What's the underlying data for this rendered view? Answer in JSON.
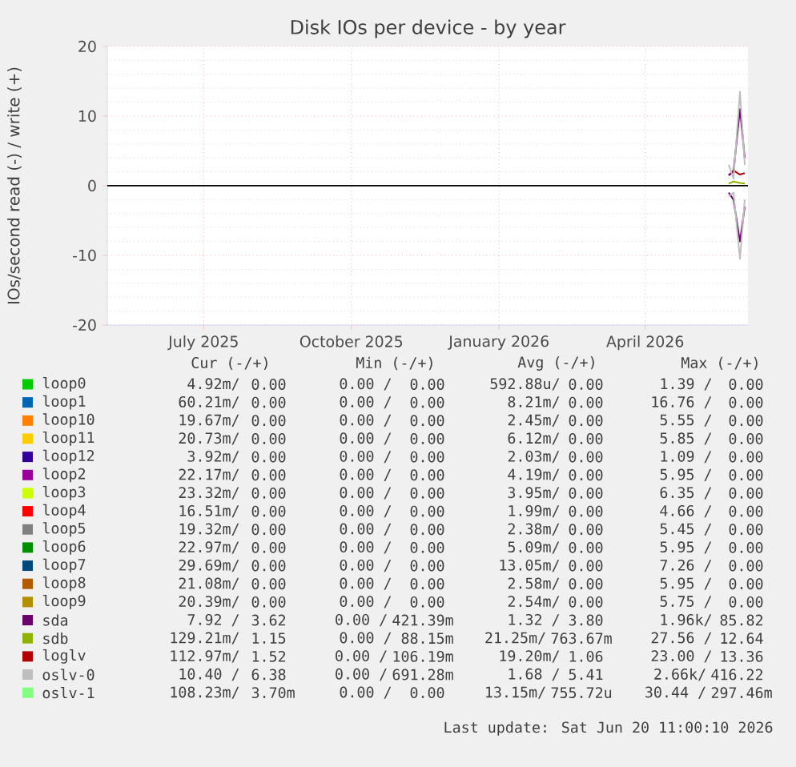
{
  "chart_data": {
    "type": "line",
    "title": "Disk IOs per device - by year",
    "ylabel": "IOs/second read (-) / write (+)",
    "xlim": [
      "2025-05-17",
      "2026-06-20"
    ],
    "xticks": [
      {
        "value": "2025-07-16",
        "label": "July 2025"
      },
      {
        "value": "2025-10-16",
        "label": "October 2025"
      },
      {
        "value": "2026-01-16",
        "label": "January 2026"
      },
      {
        "value": "2026-04-17",
        "label": "April 2026"
      }
    ],
    "ylim": [
      -20,
      20
    ],
    "yticks": [
      -20,
      -10,
      0,
      10,
      20
    ],
    "grid": true,
    "legend": "bottom",
    "ref_lines": [
      {
        "axis": "y",
        "value": 0,
        "color": "#000000"
      }
    ],
    "series": [
      {
        "name": "loop0",
        "color": "#00cc00",
        "values": [
          null,
          null,
          null,
          null
        ]
      },
      {
        "name": "loop1",
        "color": "#0066b3",
        "values": [
          null,
          null,
          null,
          null
        ]
      },
      {
        "name": "loop10",
        "color": "#ff8000",
        "values": [
          null,
          null,
          null,
          null
        ]
      },
      {
        "name": "loop11",
        "color": "#ffcc00",
        "values": [
          null,
          null,
          null,
          null
        ]
      },
      {
        "name": "loop12",
        "color": "#330099",
        "values": [
          null,
          null,
          null,
          null
        ]
      },
      {
        "name": "loop2",
        "color": "#990099",
        "values": [
          null,
          null,
          null,
          null
        ]
      },
      {
        "name": "loop3",
        "color": "#ccff00",
        "values": [
          null,
          null,
          null,
          null
        ]
      },
      {
        "name": "loop4",
        "color": "#ff0000",
        "values": [
          null,
          null,
          null,
          null
        ]
      },
      {
        "name": "loop5",
        "color": "#808080",
        "values": [
          null,
          null,
          null,
          null
        ]
      },
      {
        "name": "loop6",
        "color": "#008f00",
        "values": [
          null,
          null,
          null,
          null
        ]
      },
      {
        "name": "loop7",
        "color": "#00487d",
        "values": [
          null,
          null,
          null,
          null
        ]
      },
      {
        "name": "loop8",
        "color": "#b35a00",
        "values": [
          null,
          null,
          null,
          null
        ]
      },
      {
        "name": "loop9",
        "color": "#b38f00",
        "values": [
          null,
          null,
          null,
          null
        ]
      },
      {
        "name": "sda",
        "color": "#6b006b",
        "x": [
          "2026-06-08",
          "2026-06-11",
          "2026-06-15",
          "2026-06-18"
        ],
        "values": [
          -1,
          -2,
          -8,
          -3
        ]
      },
      {
        "name": "sdb",
        "color": "#8fb300",
        "x": [
          "2026-06-08",
          "2026-06-11",
          "2026-06-15",
          "2026-06-18"
        ],
        "values": [
          0.3,
          0.6,
          0.4,
          0.3
        ]
      },
      {
        "name": "loglv",
        "color": "#b30000",
        "x": [
          "2026-06-08",
          "2026-06-11",
          "2026-06-15",
          "2026-06-18"
        ],
        "values": [
          1.5,
          2.2,
          1.6,
          1.8
        ]
      },
      {
        "name": "oslv-0",
        "color": "#bebebe",
        "x": [
          "2026-06-08",
          "2026-06-11",
          "2026-06-15",
          "2026-06-18"
        ],
        "values": [
          -1.5,
          -1,
          -10.5,
          -2
        ]
      },
      {
        "name": "oslv-1",
        "color": "#80ff80",
        "values": [
          null,
          null,
          null,
          null
        ]
      },
      {
        "color": "#6b006b",
        "x": [
          "2026-06-08",
          "2026-06-11",
          "2026-06-15",
          "2026-06-18"
        ],
        "values": [
          1.5,
          2,
          11,
          4
        ]
      },
      {
        "color": "#bebebe",
        "x": [
          "2026-06-08",
          "2026-06-11",
          "2026-06-15",
          "2026-06-18"
        ],
        "values": [
          3,
          1,
          13.5,
          3
        ]
      }
    ],
    "annotations": [
      "Cur (-/+)",
      "Min (-/+)",
      "Avg (-/+)",
      "Max (-/+)",
      "4.92m/",
      "0.00",
      "0.00 /",
      "0.00",
      "592.88u/",
      "0.00",
      "1.39 /",
      "0.00",
      "60.21m/",
      "0.00",
      "0.00 /",
      "0.00",
      "8.21m/",
      "0.00",
      "16.76 /",
      "0.00",
      "19.67m/",
      "0.00",
      "0.00 /",
      "0.00",
      "2.45m/",
      "0.00",
      "5.55 /",
      "0.00",
      "20.73m/",
      "0.00",
      "0.00 /",
      "0.00",
      "6.12m/",
      "0.00",
      "5.85 /",
      "0.00",
      "3.92m/",
      "0.00",
      "0.00 /",
      "0.00",
      "2.03m/",
      "0.00",
      "1.09 /",
      "0.00",
      "22.17m/",
      "0.00",
      "0.00 /",
      "0.00",
      "4.19m/",
      "0.00",
      "5.95 /",
      "0.00",
      "23.32m/",
      "0.00",
      "0.00 /",
      "0.00",
      "3.95m/",
      "0.00",
      "6.35 /",
      "0.00",
      "16.51m/",
      "0.00",
      "0.00 /",
      "0.00",
      "1.99m/",
      "0.00",
      "4.66 /",
      "0.00",
      "19.32m/",
      "0.00",
      "0.00 /",
      "0.00",
      "2.38m/",
      "0.00",
      "5.45 /",
      "0.00",
      "22.97m/",
      "0.00",
      "0.00 /",
      "0.00",
      "5.09m/",
      "0.00",
      "5.95 /",
      "0.00",
      "29.69m/",
      "0.00",
      "0.00 /",
      "0.00",
      "13.05m/",
      "0.00",
      "7.26 /",
      "0.00",
      "21.08m/",
      "0.00",
      "0.00 /",
      "0.00",
      "2.58m/",
      "0.00",
      "5.95 /",
      "0.00",
      "20.39m/",
      "0.00",
      "0.00 /",
      "0.00",
      "2.54m/",
      "0.00",
      "5.75 /",
      "0.00",
      "7.92 /",
      "3.62",
      "0.00 /",
      "421.39m",
      "1.32 /",
      "3.80",
      "1.96k/",
      "85.82",
      "129.21m/",
      "1.15",
      "0.00 /",
      "88.15m",
      "21.25m/",
      "763.67m",
      "27.56 /",
      "12.64",
      "112.97m/",
      "1.52",
      "0.00 /",
      "106.19m",
      "19.20m/",
      "1.06",
      "23.00 /",
      "13.36",
      "10.40 /",
      "6.38",
      "0.00 /",
      "691.28m",
      "1.68 /",
      "5.41",
      "2.66k/",
      "416.22",
      "108.23m/",
      "3.70m",
      "0.00 /",
      "0.00",
      "13.15m/",
      "755.72u",
      "30.44 /",
      "297.46m",
      "Last update: Sat Jun 20 11:00:10 2026"
    ]
  }
}
